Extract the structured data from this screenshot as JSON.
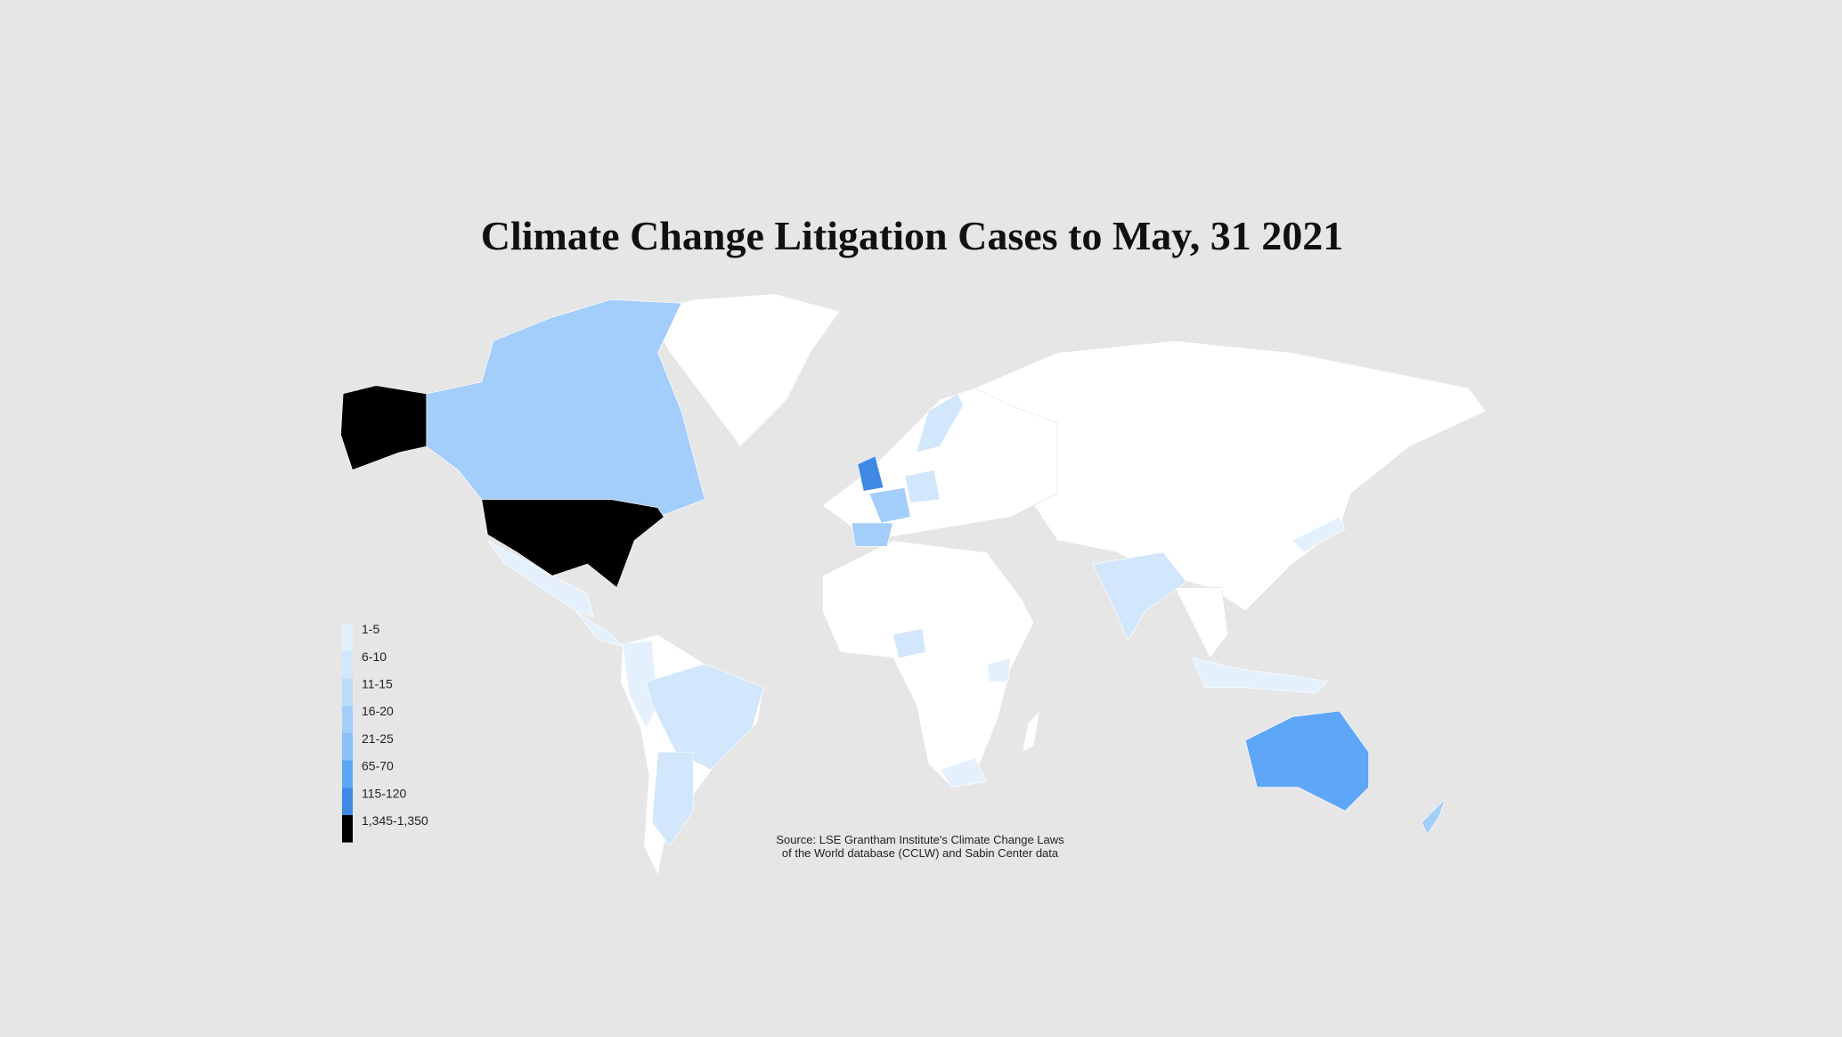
{
  "title": "Climate Change Litigation Cases to May, 31 2021",
  "legend": [
    {
      "label": "1-5",
      "color": "#e4f1fd"
    },
    {
      "label": "6-10",
      "color": "#d2e6fc"
    },
    {
      "label": "11-15",
      "color": "#bcdbfb"
    },
    {
      "label": "16-20",
      "color": "#a3cdfa"
    },
    {
      "label": "21-25",
      "color": "#8cbff8"
    },
    {
      "label": "65-70",
      "color": "#5ea6f7"
    },
    {
      "label": "115-120",
      "color": "#3f88e4"
    },
    {
      "label": "1,345-1,350",
      "color": "#000000"
    }
  ],
  "source": [
    "Source: LSE Grantham Institute's Climate Change Laws",
    "of the World database (CCLW) and Sabin Center data"
  ]
}
